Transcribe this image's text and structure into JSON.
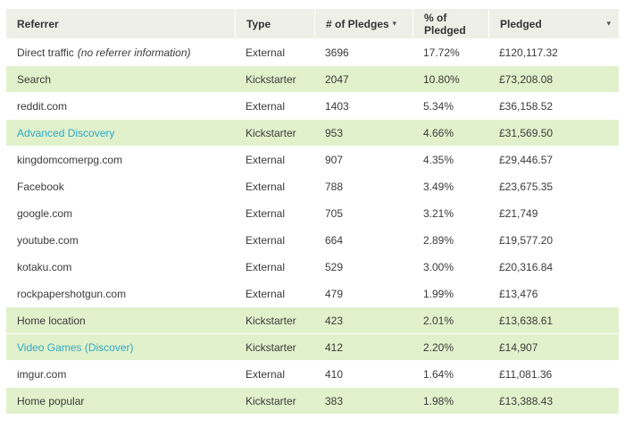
{
  "colors": {
    "header_bg": "#eef0e8",
    "highlight_row_bg": "#e1f1cc",
    "row_bg": "#ffffff",
    "text": "#3a3a3a",
    "link": "#2fa9c4"
  },
  "table": {
    "sort_arrow_icon": "▾",
    "columns": [
      {
        "label": "Referrer",
        "sortable": false
      },
      {
        "label": "Type",
        "sortable": false
      },
      {
        "label": "# of Pledges",
        "sortable": true
      },
      {
        "label": "% of Pledged",
        "sortable": false
      },
      {
        "label": "Pledged",
        "sortable": true
      }
    ],
    "rows": [
      {
        "referrer": "Direct traffic",
        "note": "(no referrer information)",
        "link": false,
        "type": "External",
        "pledges": "3696",
        "pct": "17.72%",
        "pledged": "£120,117.32"
      },
      {
        "referrer": "Search",
        "note": "",
        "link": false,
        "type": "Kickstarter",
        "pledges": "2047",
        "pct": "10.80%",
        "pledged": "£73,208.08"
      },
      {
        "referrer": "reddit.com",
        "note": "",
        "link": false,
        "type": "External",
        "pledges": "1403",
        "pct": "5.34%",
        "pledged": "£36,158.52"
      },
      {
        "referrer": "Advanced Discovery",
        "note": "",
        "link": true,
        "type": "Kickstarter",
        "pledges": "953",
        "pct": "4.66%",
        "pledged": "£31,569.50"
      },
      {
        "referrer": "kingdomcomerpg.com",
        "note": "",
        "link": false,
        "type": "External",
        "pledges": "907",
        "pct": "4.35%",
        "pledged": "£29,446.57"
      },
      {
        "referrer": "Facebook",
        "note": "",
        "link": false,
        "type": "External",
        "pledges": "788",
        "pct": "3.49%",
        "pledged": "£23,675.35"
      },
      {
        "referrer": "google.com",
        "note": "",
        "link": false,
        "type": "External",
        "pledges": "705",
        "pct": "3.21%",
        "pledged": "£21,749"
      },
      {
        "referrer": "youtube.com",
        "note": "",
        "link": false,
        "type": "External",
        "pledges": "664",
        "pct": "2.89%",
        "pledged": "£19,577.20"
      },
      {
        "referrer": "kotaku.com",
        "note": "",
        "link": false,
        "type": "External",
        "pledges": "529",
        "pct": "3.00%",
        "pledged": "£20,316.84"
      },
      {
        "referrer": "rockpapershotgun.com",
        "note": "",
        "link": false,
        "type": "External",
        "pledges": "479",
        "pct": "1.99%",
        "pledged": "£13,476"
      },
      {
        "referrer": "Home location",
        "note": "",
        "link": false,
        "type": "Kickstarter",
        "pledges": "423",
        "pct": "2.01%",
        "pledged": "£13,638.61"
      },
      {
        "referrer": "Video Games (Discover)",
        "note": "",
        "link": true,
        "type": "Kickstarter",
        "pledges": "412",
        "pct": "2.20%",
        "pledged": "£14,907"
      },
      {
        "referrer": "imgur.com",
        "note": "",
        "link": false,
        "type": "External",
        "pledges": "410",
        "pct": "1.64%",
        "pledged": "£11,081.36"
      },
      {
        "referrer": "Home popular",
        "note": "",
        "link": false,
        "type": "Kickstarter",
        "pledges": "383",
        "pct": "1.98%",
        "pledged": "£13,388.43"
      }
    ]
  }
}
